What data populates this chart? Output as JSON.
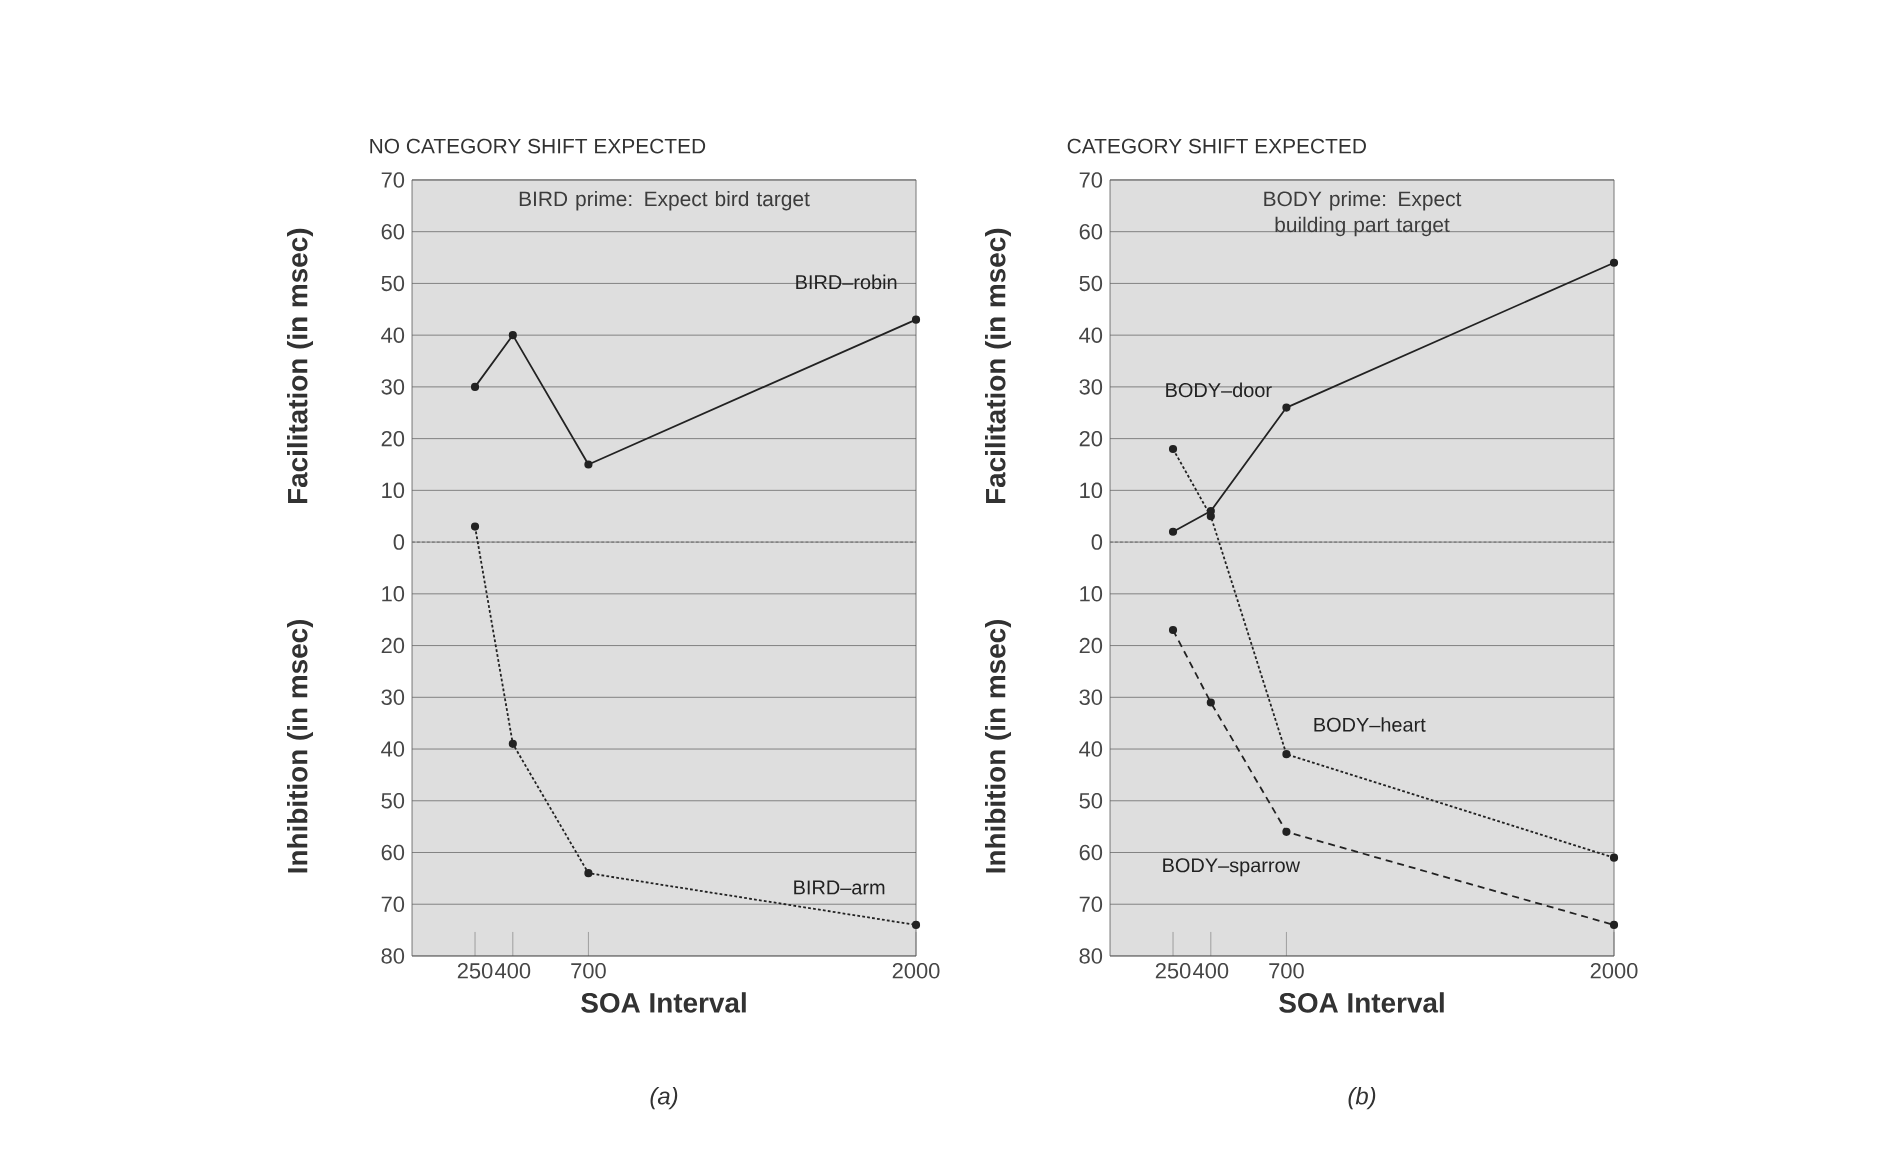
{
  "chart_data": [
    {
      "type": "line",
      "title": "NO CATEGORY SHIFT EXPECTED",
      "xlabel": "SOA Interval",
      "ylabel": "Facilitation (in msec)",
      "annotations": [
        "BIRD prime: Expect bird target",
        "Inhibition (in msec)",
        "*(a)*"
      ],
      "x": [
        250,
        400,
        700,
        2000
      ],
      "xlim": [
        0,
        2000
      ],
      "xticks": [
        250,
        400,
        700,
        2000
      ],
      "ylim": [
        -80,
        70
      ],
      "yticks": [
        70,
        60,
        50,
        40,
        30,
        20,
        10,
        0,
        {
          "value": -10,
          "label": "10"
        },
        {
          "value": -20,
          "label": "20"
        },
        {
          "value": -30,
          "label": "30"
        },
        {
          "value": -40,
          "label": "40"
        },
        {
          "value": -50,
          "label": "50"
        },
        {
          "value": -60,
          "label": "60"
        },
        {
          "value": -70,
          "label": "70"
        },
        {
          "value": -80,
          "label": "80"
        }
      ],
      "grid": "y",
      "marker": "circle",
      "ref_lines": [
        {
          "axis": "y",
          "value": 0,
          "line_style": "dotted"
        }
      ],
      "series": [
        {
          "name": "BIRD–robin",
          "color": "#222222",
          "line_style": "solid",
          "values": [
            30,
            40,
            15,
            43
          ]
        },
        {
          "name": "BIRD–arm",
          "color": "#222222",
          "line_style": "dotted",
          "values": [
            3,
            -39,
            -64,
            -74
          ]
        }
      ]
    },
    {
      "type": "line",
      "title": "CATEGORY SHIFT EXPECTED",
      "xlabel": "SOA Interval",
      "ylabel": "Facilitation (in msec)",
      "annotations": [
        "BODY prime: Expect building part target",
        "Inhibition (in msec)",
        "*(b)*"
      ],
      "x": [
        250,
        400,
        700,
        2000
      ],
      "xlim": [
        0,
        2000
      ],
      "xticks": [
        250,
        400,
        700,
        2000
      ],
      "ylim": [
        -80,
        70
      ],
      "yticks": [
        70,
        60,
        50,
        40,
        30,
        20,
        10,
        0,
        {
          "value": -10,
          "label": "10"
        },
        {
          "value": -20,
          "label": "20"
        },
        {
          "value": -30,
          "label": "30"
        },
        {
          "value": -40,
          "label": "40"
        },
        {
          "value": -50,
          "label": "50"
        },
        {
          "value": -60,
          "label": "60"
        },
        {
          "value": -70,
          "label": "70"
        },
        {
          "value": -80,
          "label": "80"
        }
      ],
      "grid": "y",
      "marker": "circle",
      "ref_lines": [
        {
          "axis": "y",
          "value": 0,
          "line_style": "dotted"
        }
      ],
      "series": [
        {
          "name": "BODY–door",
          "color": "#222222",
          "line_style": "solid",
          "values": [
            2,
            6,
            26,
            54
          ]
        },
        {
          "name": "BODY–heart",
          "color": "#222222",
          "line_style": "dotted",
          "values": [
            18,
            5,
            -41,
            -61
          ]
        },
        {
          "name": "BODY–sparrow",
          "color": "#222222",
          "line_style": "dashed",
          "values": [
            -17,
            -31,
            -56,
            -74
          ]
        }
      ]
    }
  ]
}
